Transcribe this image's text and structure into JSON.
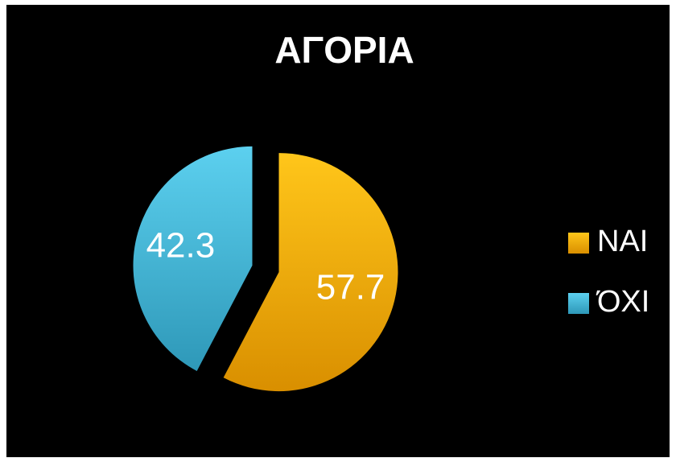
{
  "chart_data": {
    "type": "pie",
    "title": "ΑΓΟΡΙΑ",
    "categories": [
      "ΝΑΙ",
      "ΌΧΙ"
    ],
    "values": [
      57.7,
      42.3
    ],
    "colors": [
      "#f2a500",
      "#3db6d8"
    ],
    "legend": "right"
  }
}
